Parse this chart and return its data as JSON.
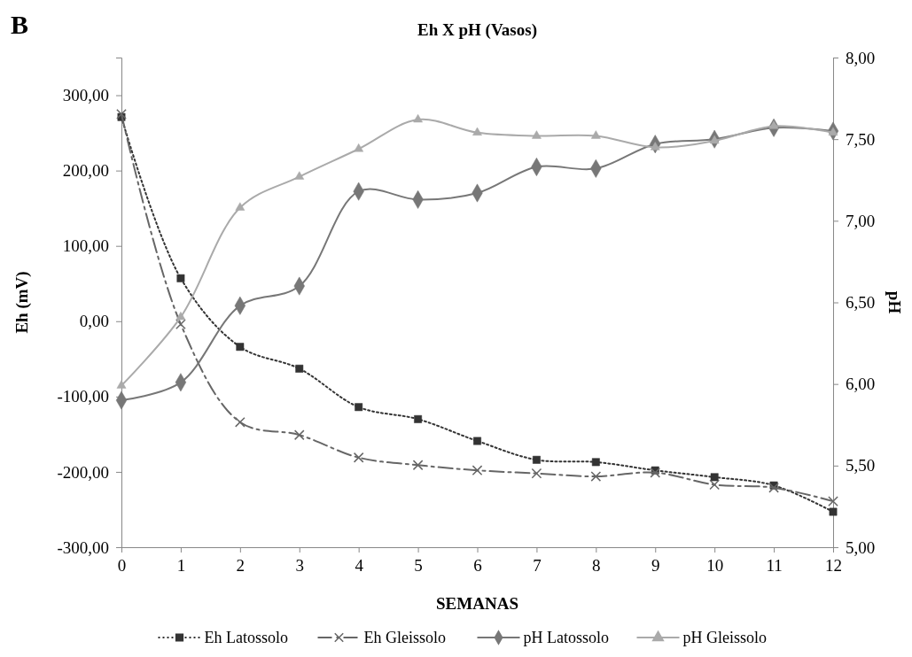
{
  "chart_data": {
    "type": "line",
    "title": "Eh X pH (Vasos)",
    "annotations": [
      "B"
    ],
    "xlabel": "SEMANAS",
    "ylabel": "Eh (mV)",
    "y2label": "pH",
    "x": [
      0,
      1,
      2,
      3,
      4,
      5,
      6,
      7,
      8,
      9,
      10,
      11,
      12
    ],
    "xlim": [
      0,
      12
    ],
    "xticks": [
      0,
      1,
      2,
      3,
      4,
      5,
      6,
      7,
      8,
      9,
      10,
      11,
      12
    ],
    "ylim": [
      -300,
      350
    ],
    "yticks": [
      {
        "value": -300,
        "label": "-300,00"
      },
      {
        "value": -200,
        "label": "-200,00"
      },
      {
        "value": -100,
        "label": "-100,00"
      },
      {
        "value": 0,
        "label": "0,00"
      },
      {
        "value": 100,
        "label": "100,00"
      },
      {
        "value": 200,
        "label": "200,00"
      },
      {
        "value": 300,
        "label": "300,00"
      }
    ],
    "y2lim": [
      5,
      8
    ],
    "y2ticks": [
      {
        "value": 5,
        "label": "5,00"
      },
      {
        "value": 5.5,
        "label": "5,50"
      },
      {
        "value": 6,
        "label": "6,00"
      },
      {
        "value": 6.5,
        "label": "6,50"
      },
      {
        "value": 7,
        "label": "7,00"
      },
      {
        "value": 7.5,
        "label": "7,50"
      },
      {
        "value": 8,
        "label": "8,00"
      }
    ],
    "grid": false,
    "legend": "bottom",
    "series": [
      {
        "name": "Eh Latossolo",
        "color": "#333333",
        "marker": "square",
        "line_style": "dotted",
        "values": [
          271,
          57,
          -34,
          -63,
          -114,
          -130,
          -159,
          -184,
          -187,
          -198,
          -207,
          -218,
          -253
        ]
      },
      {
        "name": "Eh Gleissolo",
        "color": "#666666",
        "marker": "cross",
        "line_style": "dashed",
        "values": [
          275,
          -4,
          -134,
          -151,
          -181,
          -191,
          -198,
          -202,
          -206,
          -201,
          -217,
          -221,
          -239
        ]
      },
      {
        "name": "pH Latossolo",
        "color": "#777777",
        "marker": "diamond",
        "line_style": "solid",
        "axis": "y2",
        "values": [
          5.9,
          6.01,
          6.48,
          6.6,
          7.18,
          7.13,
          7.17,
          7.33,
          7.32,
          7.47,
          7.5,
          7.57,
          7.55
        ]
      },
      {
        "name": "pH Gleissolo",
        "color": "#aaaaaa",
        "marker": "triangle",
        "line_style": "solid",
        "axis": "y2",
        "values": [
          5.99,
          6.41,
          7.08,
          7.27,
          7.44,
          7.62,
          7.54,
          7.52,
          7.52,
          7.45,
          7.49,
          7.58,
          7.54
        ]
      }
    ]
  }
}
